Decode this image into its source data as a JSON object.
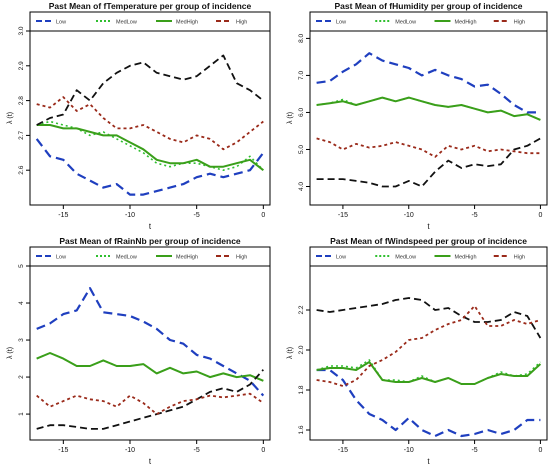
{
  "figure": {
    "legend_labels": [
      "Low",
      "MedLow",
      "MedHigh",
      "High"
    ],
    "colors": {
      "low": "#1f3fbf",
      "medlow": "#2fbf2f",
      "medhigh": "#3a9f1a",
      "high_dark": "#111111",
      "high_red": "#9a2a1a"
    }
  },
  "chart_data": [
    {
      "type": "line",
      "title": "Past Mean of fTemperature per group of incidence",
      "xlabel": "t",
      "ylabel": "λ (t)",
      "xlim": [
        -17.5,
        0.5
      ],
      "ylim": [
        2.5,
        3.0
      ],
      "xticks": [
        -15,
        -10,
        -5,
        0
      ],
      "xtick_labels": [
        "-15",
        "-10",
        "-5",
        "0"
      ],
      "yticks": [
        2.6,
        2.7,
        2.8,
        2.9,
        3.0
      ],
      "ytick_labels": [
        "2.6",
        "2.7",
        "2.8",
        "2.9",
        "3.0"
      ],
      "legend": [
        "Low",
        "MedLow",
        "MedHigh",
        "High"
      ],
      "legend_position": "top",
      "x": [
        -17,
        -16,
        -15,
        -14,
        -13,
        -12,
        -11,
        -10,
        -9,
        -8,
        -7,
        -6,
        -5,
        -4,
        -3,
        -2,
        -1,
        0
      ],
      "series": [
        {
          "name": "Low",
          "values": [
            2.69,
            2.64,
            2.63,
            2.59,
            2.57,
            2.55,
            2.56,
            2.53,
            2.53,
            2.54,
            2.55,
            2.56,
            2.58,
            2.59,
            2.58,
            2.59,
            2.6,
            2.65
          ]
        },
        {
          "name": "MedLow",
          "values": [
            2.73,
            2.74,
            2.73,
            2.72,
            2.7,
            2.71,
            2.69,
            2.67,
            2.65,
            2.62,
            2.61,
            2.62,
            2.62,
            2.61,
            2.6,
            2.61,
            2.64,
            2.6
          ]
        },
        {
          "name": "MedHigh",
          "values": [
            2.73,
            2.73,
            2.72,
            2.72,
            2.71,
            2.7,
            2.7,
            2.68,
            2.66,
            2.63,
            2.62,
            2.62,
            2.63,
            2.61,
            2.61,
            2.62,
            2.63,
            2.6
          ]
        },
        {
          "name": "High",
          "values": [
            2.73,
            2.75,
            2.76,
            2.83,
            2.8,
            2.85,
            2.88,
            2.9,
            2.91,
            2.88,
            2.87,
            2.86,
            2.87,
            2.9,
            2.93,
            2.85,
            2.83,
            2.8
          ]
        },
        {
          "name": "High",
          "values": [
            2.79,
            2.78,
            2.81,
            2.77,
            2.79,
            2.75,
            2.72,
            2.72,
            2.73,
            2.71,
            2.69,
            2.68,
            2.7,
            2.69,
            2.66,
            2.68,
            2.71,
            2.74
          ]
        }
      ]
    },
    {
      "type": "line",
      "title": "Past Mean of fHumidity per group of incidence",
      "xlabel": "t",
      "ylabel": "λ (t)",
      "xlim": [
        -17.5,
        0.5
      ],
      "ylim": [
        3.5,
        8.2
      ],
      "xticks": [
        -15,
        -10,
        -5,
        0
      ],
      "xtick_labels": [
        "-15",
        "-10",
        "-5",
        "0"
      ],
      "yticks": [
        4.0,
        5.0,
        6.0,
        7.0,
        8.0
      ],
      "ytick_labels": [
        "4.0",
        "5.0",
        "6.0",
        "7.0",
        "8.0"
      ],
      "legend": [
        "Low",
        "MedLow",
        "MedHigh",
        "High"
      ],
      "legend_position": "top",
      "x": [
        -17,
        -16,
        -15,
        -14,
        -13,
        -12,
        -11,
        -10,
        -9,
        -8,
        -7,
        -6,
        -5,
        -4,
        -3,
        -2,
        -1,
        0
      ],
      "series": [
        {
          "name": "Low",
          "values": [
            6.8,
            6.85,
            7.1,
            7.3,
            7.6,
            7.4,
            7.3,
            7.2,
            7.0,
            7.15,
            7.0,
            6.9,
            6.7,
            6.75,
            6.5,
            6.2,
            6.0,
            6.0
          ]
        },
        {
          "name": "MedLow",
          "values": [
            6.2,
            6.25,
            6.35,
            6.2,
            6.3,
            6.4,
            6.3,
            6.4,
            6.3,
            6.2,
            6.15,
            6.2,
            6.1,
            6.0,
            6.05,
            5.9,
            5.95,
            5.8
          ]
        },
        {
          "name": "MedHigh",
          "values": [
            6.2,
            6.25,
            6.3,
            6.2,
            6.3,
            6.4,
            6.3,
            6.4,
            6.3,
            6.2,
            6.15,
            6.2,
            6.1,
            6.0,
            6.05,
            5.9,
            5.95,
            5.8
          ]
        },
        {
          "name": "High",
          "values": [
            4.2,
            4.2,
            4.2,
            4.15,
            4.1,
            4.0,
            4.0,
            4.15,
            4.0,
            4.4,
            4.7,
            4.5,
            4.6,
            4.55,
            4.6,
            5.0,
            5.1,
            5.3
          ]
        },
        {
          "name": "High",
          "values": [
            5.3,
            5.2,
            5.0,
            5.15,
            5.05,
            5.1,
            5.2,
            5.1,
            5.0,
            4.8,
            5.1,
            5.0,
            5.1,
            4.95,
            5.0,
            4.95,
            4.9,
            4.9
          ]
        }
      ]
    },
    {
      "type": "line",
      "title": "Past Mean of fRainNb per group of incidence",
      "xlabel": "t",
      "ylabel": "λ (t)",
      "xlim": [
        -17.5,
        0.5
      ],
      "ylim": [
        0.3,
        5.0
      ],
      "xticks": [
        -15,
        -10,
        -5,
        0
      ],
      "xtick_labels": [
        "-15",
        "-10",
        "-5",
        "0"
      ],
      "yticks": [
        1,
        2,
        3,
        4,
        5
      ],
      "ytick_labels": [
        "1",
        "2",
        "3",
        "4",
        "5"
      ],
      "legend": [
        "Low",
        "MedLow",
        "MedHigh",
        "High"
      ],
      "legend_position": "top",
      "x": [
        -17,
        -16,
        -15,
        -14,
        -13,
        -12,
        -11,
        -10,
        -9,
        -8,
        -7,
        -6,
        -5,
        -4,
        -3,
        -2,
        -1,
        0
      ],
      "series": [
        {
          "name": "Low",
          "values": [
            3.3,
            3.45,
            3.7,
            3.8,
            4.4,
            3.75,
            3.7,
            3.65,
            3.5,
            3.3,
            3.0,
            2.9,
            2.6,
            2.5,
            2.3,
            2.1,
            1.9,
            1.5
          ]
        },
        {
          "name": "MedLow",
          "values": [
            2.5,
            2.65,
            2.5,
            2.3,
            2.3,
            2.45,
            2.3,
            2.3,
            2.35,
            2.1,
            2.25,
            2.1,
            2.15,
            2.0,
            2.1,
            2.0,
            2.05,
            1.9
          ]
        },
        {
          "name": "MedHigh",
          "values": [
            2.5,
            2.65,
            2.5,
            2.3,
            2.3,
            2.45,
            2.3,
            2.3,
            2.35,
            2.1,
            2.25,
            2.1,
            2.15,
            2.0,
            2.1,
            2.0,
            2.05,
            1.9
          ]
        },
        {
          "name": "High",
          "values": [
            0.6,
            0.7,
            0.7,
            0.65,
            0.6,
            0.6,
            0.7,
            0.8,
            0.9,
            1.0,
            1.1,
            1.2,
            1.4,
            1.6,
            1.7,
            1.6,
            1.8,
            2.2
          ]
        },
        {
          "name": "High",
          "values": [
            1.5,
            1.2,
            1.35,
            1.5,
            1.4,
            1.35,
            1.2,
            1.5,
            1.3,
            1.0,
            1.2,
            1.35,
            1.4,
            1.5,
            1.45,
            1.5,
            1.55,
            1.3
          ]
        }
      ]
    },
    {
      "type": "line",
      "title": "Past Mean of fWindspeed per group of incidence",
      "xlabel": "t",
      "ylabel": "λ (t)",
      "xlim": [
        -17.5,
        0.5
      ],
      "ylim": [
        1.55,
        2.42
      ],
      "xticks": [
        -15,
        -10,
        -5,
        0
      ],
      "xtick_labels": [
        "-15",
        "-10",
        "-5",
        "0"
      ],
      "yticks": [
        1.6,
        1.8,
        2.0,
        2.2
      ],
      "ytick_labels": [
        "1.6",
        "1.8",
        "2.0",
        "2.2"
      ],
      "legend": [
        "Low",
        "MedLow",
        "MedHigh",
        "High"
      ],
      "legend_position": "top",
      "x": [
        -17,
        -16,
        -15,
        -14,
        -13,
        -12,
        -11,
        -10,
        -9,
        -8,
        -7,
        -6,
        -5,
        -4,
        -3,
        -2,
        -1,
        0
      ],
      "series": [
        {
          "name": "Low",
          "values": [
            1.9,
            1.9,
            1.85,
            1.75,
            1.68,
            1.65,
            1.6,
            1.66,
            1.6,
            1.57,
            1.6,
            1.57,
            1.58,
            1.6,
            1.58,
            1.6,
            1.65,
            1.65
          ]
        },
        {
          "name": "MedLow",
          "values": [
            1.9,
            1.92,
            1.92,
            1.91,
            1.95,
            1.85,
            1.85,
            1.84,
            1.87,
            1.84,
            1.86,
            1.83,
            1.83,
            1.86,
            1.89,
            1.87,
            1.88,
            1.94
          ]
        },
        {
          "name": "MedHigh",
          "values": [
            1.9,
            1.91,
            1.91,
            1.9,
            1.94,
            1.85,
            1.84,
            1.84,
            1.86,
            1.84,
            1.86,
            1.83,
            1.83,
            1.86,
            1.88,
            1.87,
            1.87,
            1.93
          ]
        },
        {
          "name": "High",
          "values": [
            2.2,
            2.19,
            2.2,
            2.21,
            2.22,
            2.23,
            2.25,
            2.26,
            2.25,
            2.2,
            2.21,
            2.17,
            2.14,
            2.14,
            2.15,
            2.19,
            2.17,
            2.06
          ]
        },
        {
          "name": "High",
          "values": [
            1.85,
            1.84,
            1.82,
            1.85,
            1.92,
            1.95,
            1.99,
            2.05,
            2.06,
            2.1,
            2.13,
            2.15,
            2.22,
            2.12,
            2.12,
            2.15,
            2.13,
            2.15
          ]
        }
      ]
    }
  ]
}
